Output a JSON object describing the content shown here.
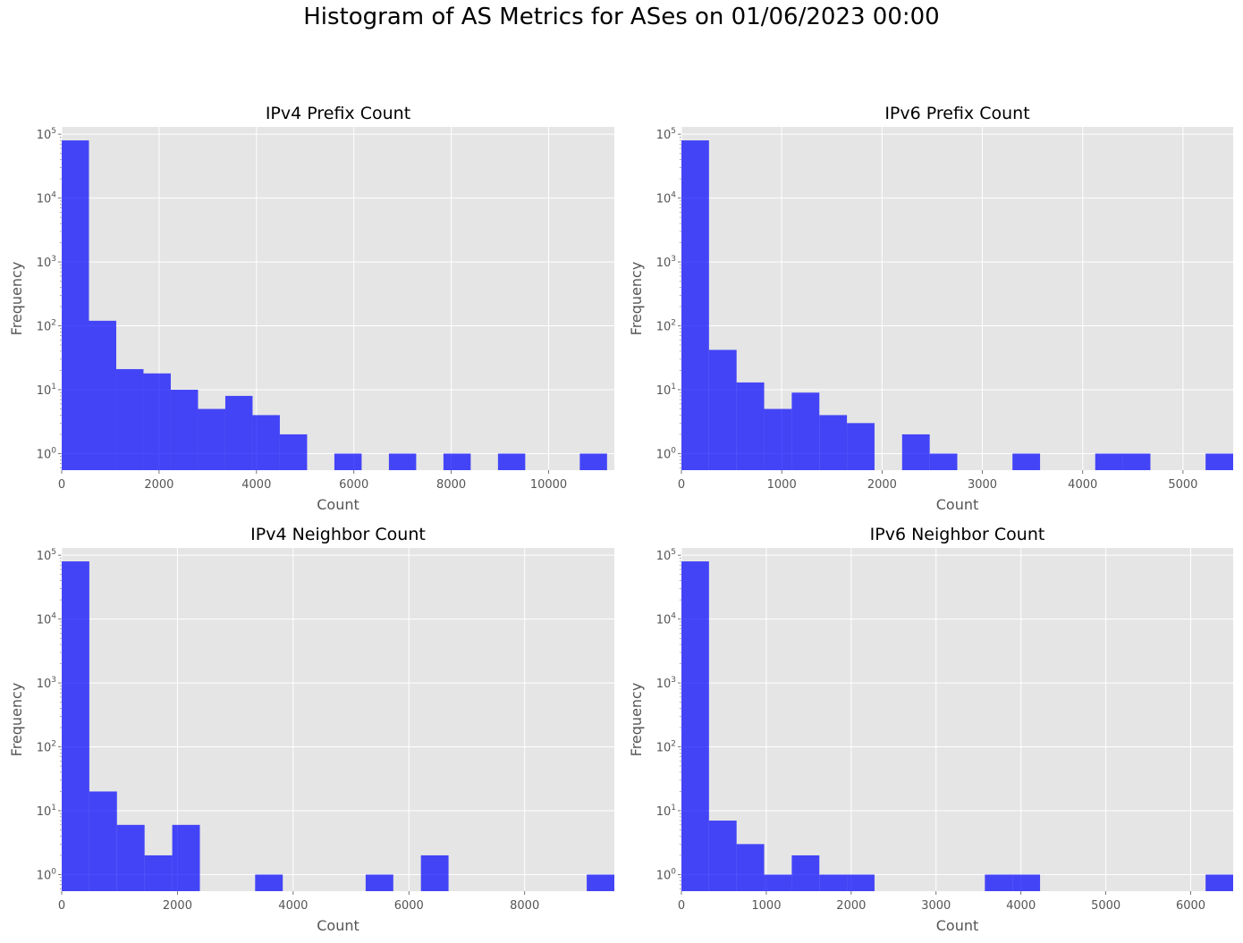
{
  "figure": {
    "title": "Histogram of AS Metrics for ASes on 01/06/2023 00:00"
  },
  "chart_data": [
    {
      "type": "bar",
      "title": "IPv4 Prefix Count",
      "xlabel": "Count",
      "ylabel": "Frequency",
      "yscale": "log",
      "xlim": [
        0,
        11350
      ],
      "ylim": [
        0.55,
        130000
      ],
      "xticks": [
        0,
        2000,
        4000,
        6000,
        8000,
        10000
      ],
      "bin_width": 560,
      "bins": [
        {
          "x0": 0,
          "count": 80000
        },
        {
          "x0": 560,
          "count": 120
        },
        {
          "x0": 1120,
          "count": 21
        },
        {
          "x0": 1680,
          "count": 18
        },
        {
          "x0": 2240,
          "count": 10
        },
        {
          "x0": 2800,
          "count": 5
        },
        {
          "x0": 3360,
          "count": 8
        },
        {
          "x0": 3920,
          "count": 4
        },
        {
          "x0": 4480,
          "count": 2
        },
        {
          "x0": 5600,
          "count": 1
        },
        {
          "x0": 6720,
          "count": 1
        },
        {
          "x0": 7840,
          "count": 1
        },
        {
          "x0": 8960,
          "count": 1
        },
        {
          "x0": 10640,
          "count": 1
        }
      ],
      "color": "#0000ff",
      "grid": true
    },
    {
      "type": "bar",
      "title": "IPv6 Prefix Count",
      "xlabel": "Count",
      "ylabel": "Frequency",
      "yscale": "log",
      "xlim": [
        0,
        5500
      ],
      "ylim": [
        0.55,
        130000
      ],
      "xticks": [
        0,
        1000,
        2000,
        3000,
        4000,
        5000
      ],
      "bin_width": 275,
      "bins": [
        {
          "x0": 0,
          "count": 80000
        },
        {
          "x0": 275,
          "count": 42
        },
        {
          "x0": 550,
          "count": 13
        },
        {
          "x0": 825,
          "count": 5
        },
        {
          "x0": 1100,
          "count": 9
        },
        {
          "x0": 1375,
          "count": 4
        },
        {
          "x0": 1650,
          "count": 3
        },
        {
          "x0": 2200,
          "count": 2
        },
        {
          "x0": 2475,
          "count": 1
        },
        {
          "x0": 3300,
          "count": 1
        },
        {
          "x0": 4125,
          "count": 1
        },
        {
          "x0": 4400,
          "count": 1
        },
        {
          "x0": 5225,
          "count": 1
        }
      ],
      "color": "#0000ff",
      "grid": true
    },
    {
      "type": "bar",
      "title": "IPv4 Neighbor Count",
      "xlabel": "Count",
      "ylabel": "Frequency",
      "yscale": "log",
      "xlim": [
        0,
        9550
      ],
      "ylim": [
        0.55,
        130000
      ],
      "xticks": [
        0,
        2000,
        4000,
        6000,
        8000
      ],
      "bin_width": 477.5,
      "bins": [
        {
          "x0": 0,
          "count": 80000
        },
        {
          "x0": 477.5,
          "count": 20
        },
        {
          "x0": 955,
          "count": 6
        },
        {
          "x0": 1432.5,
          "count": 2
        },
        {
          "x0": 1910,
          "count": 6
        },
        {
          "x0": 3342.5,
          "count": 1
        },
        {
          "x0": 5252.5,
          "count": 1
        },
        {
          "x0": 6207.5,
          "count": 2
        },
        {
          "x0": 9072.5,
          "count": 1
        }
      ],
      "color": "#0000ff",
      "grid": true
    },
    {
      "type": "bar",
      "title": "IPv6 Neighbor Count",
      "xlabel": "Count",
      "ylabel": "Frequency",
      "yscale": "log",
      "xlim": [
        0,
        6500
      ],
      "ylim": [
        0.55,
        130000
      ],
      "xticks": [
        0,
        1000,
        2000,
        3000,
        4000,
        5000,
        6000
      ],
      "bin_width": 325,
      "bins": [
        {
          "x0": 0,
          "count": 80000
        },
        {
          "x0": 325,
          "count": 7
        },
        {
          "x0": 650,
          "count": 3
        },
        {
          "x0": 975,
          "count": 1
        },
        {
          "x0": 1300,
          "count": 2
        },
        {
          "x0": 1625,
          "count": 1
        },
        {
          "x0": 1950,
          "count": 1
        },
        {
          "x0": 3575,
          "count": 1
        },
        {
          "x0": 3900,
          "count": 1
        },
        {
          "x0": 6175,
          "count": 1
        }
      ],
      "color": "#0000ff",
      "grid": true
    }
  ]
}
